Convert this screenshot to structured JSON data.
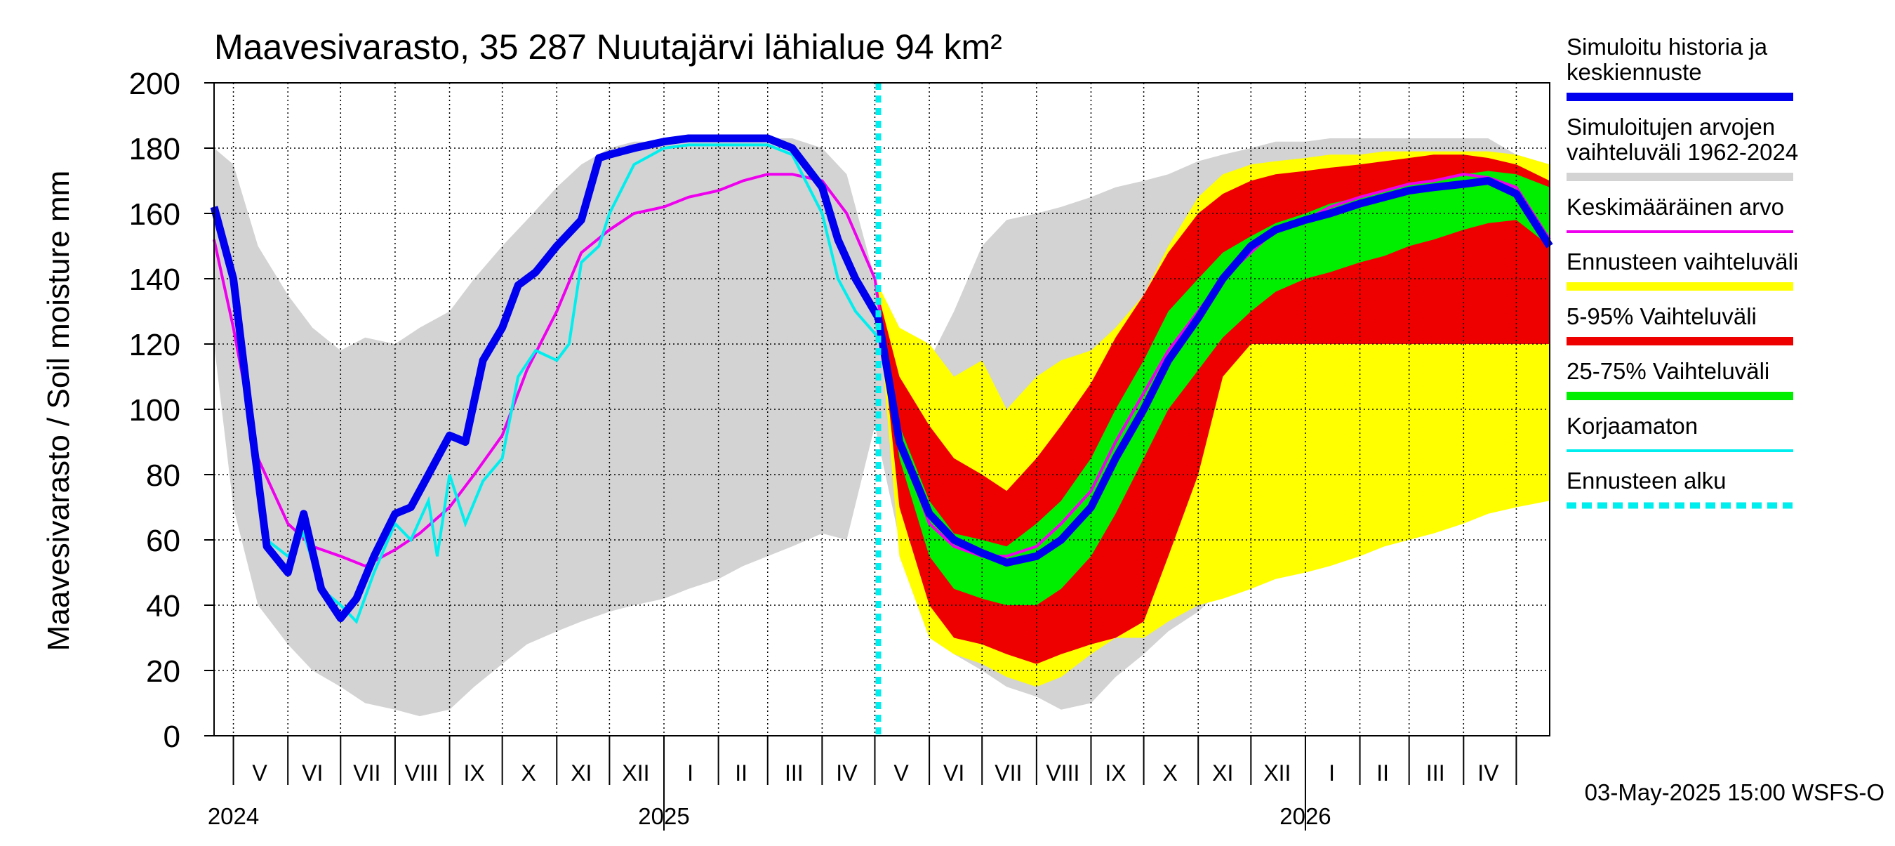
{
  "chart_data": {
    "type": "area",
    "title": "Maavesivarasto, 35 287 Nuutajärvi lähialue 94 km²",
    "ylabel": "Maavesivarasto / Soil moisture   mm",
    "ylim": [
      0,
      200
    ],
    "yticks": [
      0,
      20,
      40,
      60,
      80,
      100,
      120,
      140,
      160,
      180,
      200
    ],
    "xlim": [
      "2024-04-20",
      "2026-05-20"
    ],
    "forecast_start": "2025-05-03",
    "timestamp": "03-May-2025 15:00 WSFS-O",
    "month_labels": [
      "V",
      "VI",
      "VII",
      "VIII",
      "IX",
      "X",
      "XI",
      "XII",
      "I",
      "II",
      "III",
      "IV",
      "V",
      "VI",
      "VII",
      "VIII",
      "IX",
      "X",
      "XI",
      "XII",
      "I",
      "II",
      "III",
      "IV"
    ],
    "month_label_dates": [
      "2024-05-16",
      "2024-06-15",
      "2024-07-16",
      "2024-08-16",
      "2024-09-15",
      "2024-10-16",
      "2024-11-15",
      "2024-12-16",
      "2025-01-16",
      "2025-02-14",
      "2025-03-16",
      "2025-04-15",
      "2025-05-16",
      "2025-06-15",
      "2025-07-16",
      "2025-08-16",
      "2025-09-15",
      "2025-10-16",
      "2025-11-15",
      "2025-12-16",
      "2026-01-16",
      "2026-02-14",
      "2026-03-16",
      "2026-04-15"
    ],
    "year_labels": [
      {
        "label": "2024",
        "date": "2024-05-01"
      },
      {
        "label": "2025",
        "date": "2025-01-01"
      },
      {
        "label": "2026",
        "date": "2026-01-01"
      }
    ],
    "legend": [
      {
        "label": "Simuloitu historia ja\nkeskiennuste",
        "color": "#0000ee",
        "style": "thick"
      },
      {
        "label": "Simuloitujen arvojen\nvaihteluväli 1962-2024",
        "color": "#d3d3d3",
        "style": "thick"
      },
      {
        "label": "Keskimääräinen arvo",
        "color": "#ee00ee",
        "style": "thin"
      },
      {
        "label": "Ennusteen vaihteluväli",
        "color": "#ffff00",
        "style": "thick"
      },
      {
        "label": "5-95% Vaihteluväli",
        "color": "#ee0000",
        "style": "thick"
      },
      {
        "label": "25-75% Vaihteluväli",
        "color": "#00ee00",
        "style": "thick"
      },
      {
        "label": "Korjaamaton",
        "color": "#00eeee",
        "style": "thin"
      },
      {
        "label": "Ennusteen alku",
        "color": "#00eeee",
        "style": "dashed"
      }
    ],
    "series": {
      "hist_range": {
        "x": [
          "2024-04-20",
          "2024-05-01",
          "2024-05-15",
          "2024-06-01",
          "2024-06-15",
          "2024-07-01",
          "2024-07-15",
          "2024-08-01",
          "2024-08-15",
          "2024-09-01",
          "2024-09-15",
          "2024-10-01",
          "2024-10-15",
          "2024-11-01",
          "2024-11-15",
          "2024-12-01",
          "2024-12-15",
          "2025-01-01",
          "2025-01-15",
          "2025-02-01",
          "2025-02-15",
          "2025-03-01",
          "2025-03-15",
          "2025-04-01",
          "2025-04-15",
          "2025-05-01",
          "2025-05-15",
          "2025-06-01",
          "2025-06-15",
          "2025-07-01",
          "2025-07-15",
          "2025-08-01",
          "2025-08-15",
          "2025-09-01",
          "2025-09-15",
          "2025-10-01",
          "2025-10-15",
          "2025-11-01",
          "2025-11-15",
          "2025-12-01",
          "2025-12-15",
          "2026-01-01",
          "2026-01-15",
          "2026-02-01",
          "2026-02-15",
          "2026-03-01",
          "2026-03-15",
          "2026-04-01",
          "2026-04-15",
          "2026-05-01",
          "2026-05-20"
        ],
        "upper": [
          180,
          175,
          150,
          135,
          125,
          118,
          122,
          120,
          125,
          130,
          140,
          150,
          158,
          168,
          175,
          180,
          182,
          182,
          183,
          183,
          183,
          183,
          183,
          180,
          172,
          140,
          125,
          115,
          130,
          150,
          158,
          160,
          162,
          165,
          168,
          170,
          172,
          176,
          178,
          180,
          182,
          182,
          183,
          183,
          183,
          183,
          183,
          183,
          183,
          178,
          175
        ],
        "lower": [
          120,
          70,
          40,
          28,
          20,
          15,
          10,
          8,
          6,
          8,
          15,
          22,
          28,
          32,
          35,
          38,
          40,
          42,
          45,
          48,
          52,
          55,
          58,
          62,
          60,
          95,
          60,
          32,
          25,
          20,
          15,
          12,
          8,
          10,
          18,
          25,
          32,
          38,
          45,
          48,
          50,
          52,
          55,
          58,
          60,
          62,
          65,
          70,
          75,
          85,
          95
        ]
      },
      "forecast_range": {
        "x": [
          "2025-05-03",
          "2025-05-15",
          "2025-06-01",
          "2025-06-15",
          "2025-07-01",
          "2025-07-15",
          "2025-08-01",
          "2025-08-15",
          "2025-09-01",
          "2025-09-15",
          "2025-10-01",
          "2025-10-15",
          "2025-11-01",
          "2025-11-15",
          "2025-12-01",
          "2025-12-15",
          "2026-01-01",
          "2026-01-15",
          "2026-02-01",
          "2026-02-15",
          "2026-03-01",
          "2026-03-15",
          "2026-04-01",
          "2026-04-15",
          "2026-05-01",
          "2026-05-20"
        ],
        "upper": [
          138,
          125,
          120,
          110,
          115,
          100,
          110,
          115,
          118,
          125,
          135,
          150,
          165,
          172,
          175,
          176,
          177,
          178,
          178,
          179,
          179,
          179,
          179,
          179,
          178,
          175
        ],
        "lower": [
          130,
          55,
          30,
          25,
          22,
          18,
          15,
          18,
          25,
          30,
          30,
          35,
          40,
          42,
          45,
          48,
          50,
          52,
          55,
          58,
          60,
          62,
          65,
          68,
          70,
          72
        ]
      },
      "p5_95": {
        "x": [
          "2025-05-03",
          "2025-05-15",
          "2025-06-01",
          "2025-06-15",
          "2025-07-01",
          "2025-07-15",
          "2025-08-01",
          "2025-08-15",
          "2025-09-01",
          "2025-09-15",
          "2025-10-01",
          "2025-10-15",
          "2025-11-01",
          "2025-11-15",
          "2025-12-01",
          "2025-12-15",
          "2026-01-01",
          "2026-01-15",
          "2026-02-01",
          "2026-02-15",
          "2026-03-01",
          "2026-03-15",
          "2026-04-01",
          "2026-04-15",
          "2026-05-01",
          "2026-05-20"
        ],
        "upper": [
          135,
          110,
          95,
          85,
          80,
          75,
          85,
          95,
          108,
          122,
          135,
          148,
          160,
          166,
          170,
          172,
          173,
          174,
          175,
          176,
          177,
          178,
          178,
          177,
          175,
          170
        ],
        "lower": [
          132,
          70,
          40,
          30,
          28,
          25,
          22,
          25,
          28,
          30,
          35,
          55,
          80,
          110,
          120,
          120,
          120,
          120,
          120,
          120,
          120,
          120,
          120,
          120,
          120,
          120
        ]
      },
      "p25_75": {
        "x": [
          "2025-05-03",
          "2025-05-15",
          "2025-06-01",
          "2025-06-15",
          "2025-07-01",
          "2025-07-15",
          "2025-08-01",
          "2025-08-15",
          "2025-09-01",
          "2025-09-15",
          "2025-10-01",
          "2025-10-15",
          "2025-11-01",
          "2025-11-15",
          "2025-12-01",
          "2025-12-15",
          "2026-01-01",
          "2026-01-15",
          "2026-02-01",
          "2026-02-15",
          "2026-03-01",
          "2026-03-15",
          "2026-04-01",
          "2026-04-15",
          "2026-05-01",
          "2026-05-20"
        ],
        "upper": [
          133,
          95,
          72,
          62,
          60,
          58,
          65,
          72,
          85,
          100,
          115,
          130,
          140,
          148,
          153,
          157,
          160,
          163,
          165,
          167,
          169,
          170,
          172,
          173,
          172,
          168
        ],
        "lower": [
          133,
          85,
          55,
          45,
          42,
          40,
          40,
          45,
          55,
          68,
          85,
          100,
          112,
          122,
          130,
          136,
          140,
          142,
          145,
          147,
          150,
          152,
          155,
          157,
          158,
          150
        ]
      },
      "mean": {
        "x": [
          "2024-04-20",
          "2024-05-01",
          "2024-05-15",
          "2024-06-01",
          "2024-06-15",
          "2024-07-01",
          "2024-07-15",
          "2024-08-01",
          "2024-08-15",
          "2024-09-01",
          "2024-09-15",
          "2024-10-01",
          "2024-10-15",
          "2024-11-01",
          "2024-11-15",
          "2024-12-01",
          "2024-12-15",
          "2025-01-01",
          "2025-01-15",
          "2025-02-01",
          "2025-02-15",
          "2025-03-01",
          "2025-03-15",
          "2025-04-01",
          "2025-04-15",
          "2025-05-01",
          "2025-05-15",
          "2025-06-01",
          "2025-06-15",
          "2025-07-01",
          "2025-07-15",
          "2025-08-01",
          "2025-08-15",
          "2025-09-01",
          "2025-09-15",
          "2025-10-01",
          "2025-10-15",
          "2025-11-01",
          "2025-11-15",
          "2025-12-01",
          "2025-12-15",
          "2026-01-01",
          "2026-01-15",
          "2026-02-01",
          "2026-02-15",
          "2026-03-01",
          "2026-03-15",
          "2026-04-01",
          "2026-04-15",
          "2026-05-01",
          "2026-05-20"
        ],
        "y": [
          152,
          125,
          85,
          65,
          58,
          55,
          52,
          57,
          62,
          70,
          80,
          92,
          112,
          130,
          148,
          155,
          160,
          162,
          165,
          167,
          170,
          172,
          172,
          170,
          160,
          140,
          90,
          65,
          58,
          55,
          55,
          58,
          65,
          75,
          90,
          105,
          118,
          130,
          140,
          148,
          155,
          158,
          162,
          165,
          167,
          169,
          170,
          172,
          171,
          168,
          152
        ]
      },
      "uncorrected": {
        "x": [
          "2024-04-20",
          "2024-05-01",
          "2024-05-10",
          "2024-05-20",
          "2024-06-01",
          "2024-06-10",
          "2024-06-20",
          "2024-07-01",
          "2024-07-10",
          "2024-07-20",
          "2024-08-01",
          "2024-08-10",
          "2024-08-20",
          "2024-08-25",
          "2024-09-01",
          "2024-09-10",
          "2024-09-20",
          "2024-10-01",
          "2024-10-10",
          "2024-10-20",
          "2024-11-01",
          "2024-11-08",
          "2024-11-15",
          "2024-11-25",
          "2024-12-01",
          "2024-12-15",
          "2025-01-01",
          "2025-01-15",
          "2025-02-01",
          "2025-02-15",
          "2025-03-01",
          "2025-03-15",
          "2025-04-01",
          "2025-04-10",
          "2025-04-20",
          "2025-05-03"
        ],
        "y": [
          162,
          140,
          105,
          60,
          55,
          62,
          45,
          40,
          35,
          50,
          65,
          60,
          72,
          55,
          80,
          65,
          78,
          85,
          110,
          118,
          115,
          120,
          145,
          150,
          160,
          175,
          180,
          181,
          181,
          181,
          181,
          178,
          160,
          140,
          130,
          122
        ]
      },
      "simulated": {
        "x": [
          "2024-04-20",
          "2024-05-01",
          "2024-05-10",
          "2024-05-20",
          "2024-06-01",
          "2024-06-10",
          "2024-06-20",
          "2024-07-01",
          "2024-07-10",
          "2024-07-20",
          "2024-08-01",
          "2024-08-10",
          "2024-08-20",
          "2024-09-01",
          "2024-09-10",
          "2024-09-20",
          "2024-10-01",
          "2024-10-10",
          "2024-10-20",
          "2024-11-01",
          "2024-11-15",
          "2024-11-25",
          "2024-12-01",
          "2024-12-15",
          "2025-01-01",
          "2025-01-15",
          "2025-02-01",
          "2025-02-15",
          "2025-03-01",
          "2025-03-15",
          "2025-04-01",
          "2025-04-10",
          "2025-04-20",
          "2025-05-03",
          "2025-05-15",
          "2025-06-01",
          "2025-06-15",
          "2025-07-01",
          "2025-07-15",
          "2025-08-01",
          "2025-08-15",
          "2025-09-01",
          "2025-09-15",
          "2025-10-01",
          "2025-10-15",
          "2025-11-01",
          "2025-11-15",
          "2025-12-01",
          "2025-12-15",
          "2026-01-01",
          "2026-01-15",
          "2026-02-01",
          "2026-02-15",
          "2026-03-01",
          "2026-03-15",
          "2026-04-01",
          "2026-04-15",
          "2026-05-01",
          "2026-05-20"
        ],
        "y": [
          162,
          140,
          100,
          58,
          50,
          68,
          45,
          36,
          42,
          55,
          68,
          70,
          80,
          92,
          90,
          115,
          125,
          138,
          142,
          150,
          158,
          177,
          178,
          180,
          182,
          183,
          183,
          183,
          183,
          180,
          168,
          152,
          140,
          128,
          90,
          68,
          60,
          56,
          53,
          55,
          60,
          70,
          85,
          100,
          115,
          128,
          140,
          150,
          155,
          158,
          160,
          163,
          165,
          167,
          168,
          169,
          170,
          166,
          150
        ]
      }
    }
  }
}
